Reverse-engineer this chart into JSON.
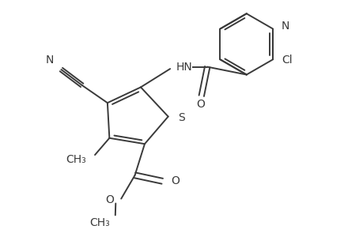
{
  "bg_color": "#ffffff",
  "line_color": "#3a3a3a",
  "line_width": 1.4,
  "figsize": [
    4.6,
    3.0
  ],
  "dpi": 100,
  "font_size": 10,
  "xlim": [
    0,
    9.2
  ],
  "ylim": [
    0,
    6.0
  ]
}
